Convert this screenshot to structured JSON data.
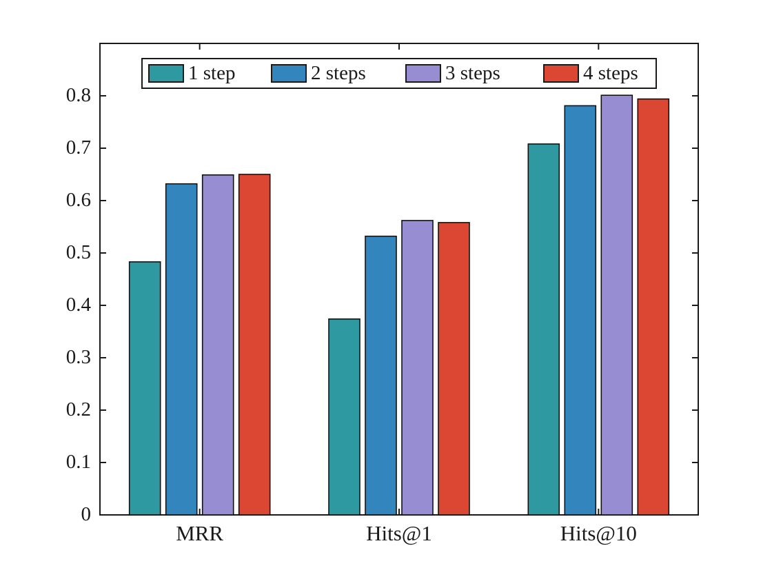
{
  "chart_data": {
    "type": "bar",
    "title": "",
    "xlabel": "",
    "ylabel": "",
    "categories": [
      "MRR",
      "Hits@1",
      "Hits@10"
    ],
    "series": [
      {
        "name": "1 step",
        "color": "#2E99A0",
        "values": [
          0.483,
          0.374,
          0.708
        ]
      },
      {
        "name": "2 steps",
        "color": "#3286BD",
        "values": [
          0.632,
          0.532,
          0.781
        ]
      },
      {
        "name": "3 steps",
        "color": "#978DD3",
        "values": [
          0.649,
          0.562,
          0.801
        ]
      },
      {
        "name": "4 steps",
        "color": "#DC4733",
        "values": [
          0.65,
          0.558,
          0.794
        ]
      }
    ],
    "ylim": [
      0,
      0.9
    ],
    "yticks": [
      0,
      0.1,
      0.2,
      0.3,
      0.4,
      0.5,
      0.6,
      0.7,
      0.8
    ],
    "ytick_labels": [
      "0",
      "0.1",
      "0.2",
      "0.3",
      "0.4",
      "0.5",
      "0.6",
      "0.7",
      "0.8"
    ],
    "grid": false,
    "legend_position": "top-inside",
    "bar_edge_color": "#111111",
    "axis_color": "#1a1a1a"
  }
}
